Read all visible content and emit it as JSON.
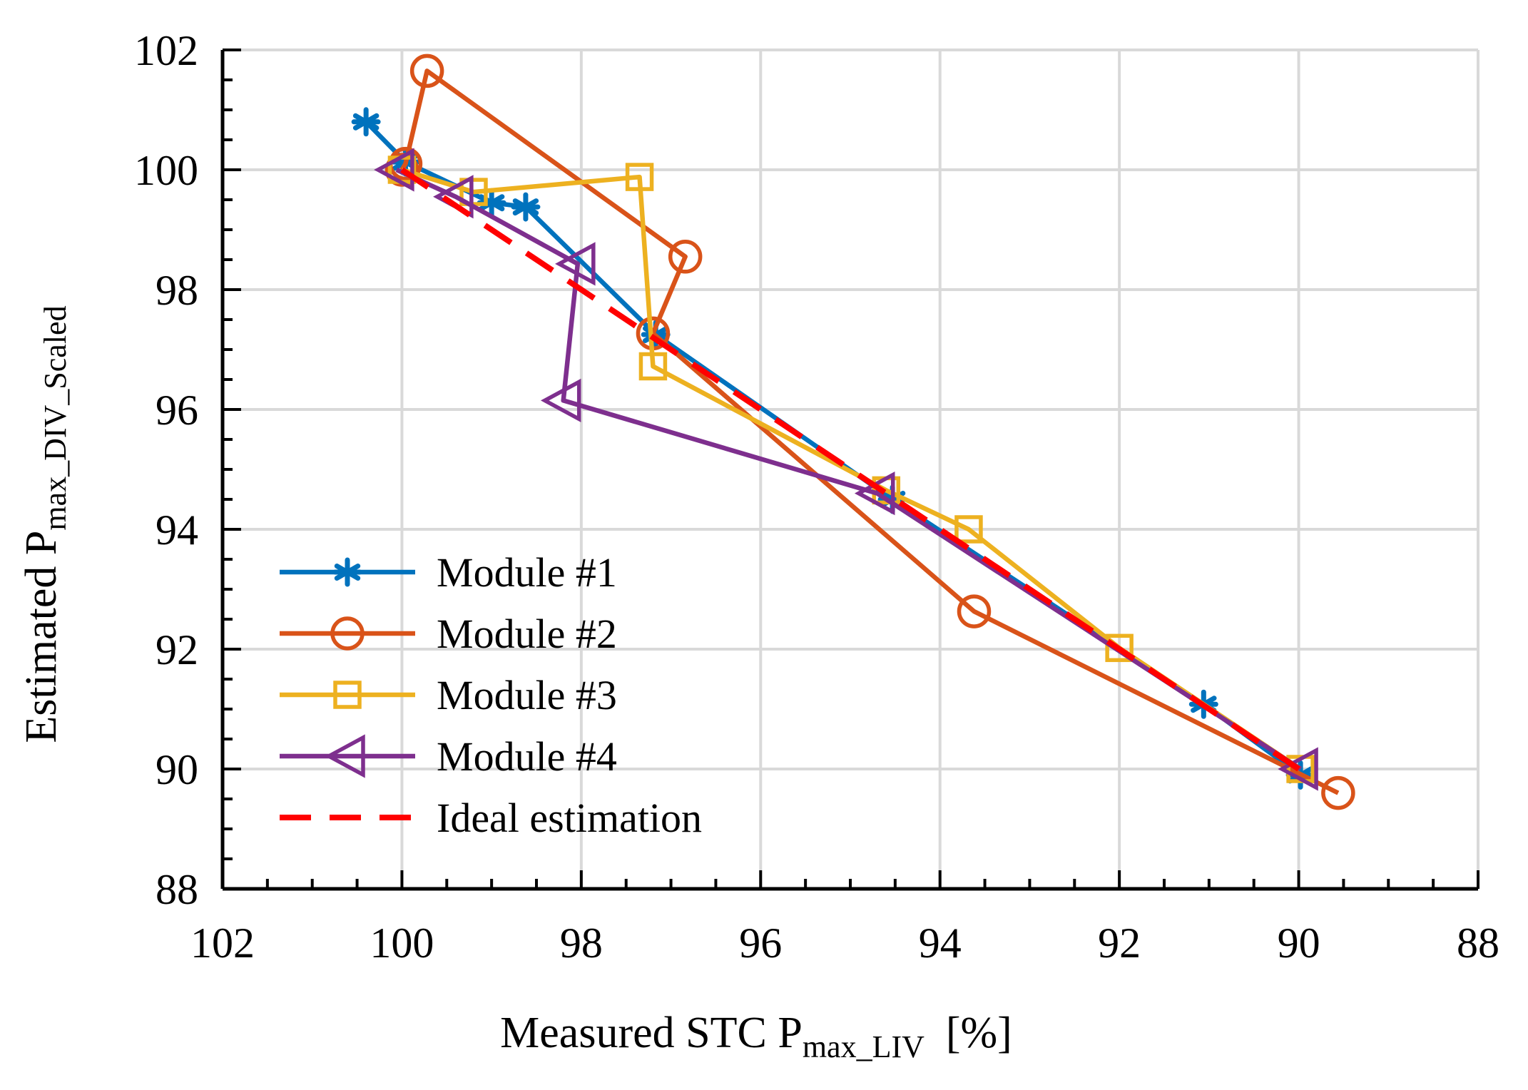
{
  "chart_data": {
    "type": "line",
    "title": "",
    "xlabel": {
      "main": "Measured STC P",
      "subscript": "max_LIV",
      "unit": "[%]"
    },
    "ylabel": {
      "main": "Estimated P",
      "subscript": "max_DIV_Scaled"
    },
    "x_reversed": true,
    "xlim": [
      102,
      88
    ],
    "ylim": [
      88,
      102
    ],
    "xticks": [
      102,
      100,
      98,
      96,
      94,
      92,
      90,
      88
    ],
    "yticks": [
      88,
      90,
      92,
      94,
      96,
      98,
      100,
      102
    ],
    "xtick_labels": [
      "102",
      "100",
      "98",
      "96",
      "94",
      "92",
      "90",
      "88"
    ],
    "ytick_labels": [
      "88",
      "90",
      "92",
      "94",
      "96",
      "98",
      "100",
      "102"
    ],
    "grid": true,
    "legend_position": "lower-left",
    "series": [
      {
        "name": "Module #1",
        "color": "#0072BD",
        "marker": "asterisk",
        "x": [
          100.4,
          99.96,
          99.0,
          98.62,
          97.17,
          94.53,
          91.06,
          89.98
        ],
        "y": [
          100.8,
          100.13,
          99.45,
          99.38,
          97.25,
          94.5,
          91.08,
          89.9
        ]
      },
      {
        "name": "Module #2",
        "color": "#D95319",
        "marker": "circle",
        "x": [
          100.0,
          99.96,
          99.72,
          96.84,
          97.2,
          93.62,
          89.56
        ],
        "y": [
          100.0,
          100.1,
          101.65,
          98.55,
          97.27,
          92.63,
          89.6
        ]
      },
      {
        "name": "Module #3",
        "color": "#EDB120",
        "marker": "square",
        "x": [
          100.0,
          99.2,
          97.35,
          97.2,
          94.6,
          93.68,
          92.0,
          89.98
        ],
        "y": [
          100.0,
          99.63,
          99.88,
          96.72,
          94.65,
          94.0,
          92.02,
          90.0
        ]
      },
      {
        "name": "Module #4",
        "color": "#7E2F8E",
        "marker": "triangle-left",
        "x": [
          100.06,
          99.4,
          98.04,
          98.2,
          94.7,
          89.98
        ],
        "y": [
          100.0,
          99.55,
          98.43,
          96.15,
          94.6,
          90.0
        ]
      },
      {
        "name": "Ideal estimation",
        "color": "#FF0000",
        "marker": "none",
        "dashed": true,
        "x": [
          100,
          90
        ],
        "y": [
          100,
          90
        ]
      }
    ]
  }
}
